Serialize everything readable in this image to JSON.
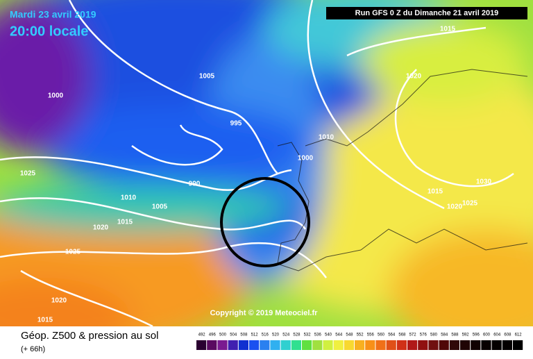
{
  "header": {
    "date": "Mardi 23 avril 2019",
    "time": "20:00 locale",
    "run": "Run GFS 0 Z du Dimanche 21 avril 2019"
  },
  "isobar_labels": [
    1015,
    1005,
    1000,
    1020,
    995,
    1010,
    1000,
    990,
    1025,
    1010,
    1005,
    1015,
    1020,
    1025,
    1030,
    1015,
    1020,
    1025,
    1020,
    1015
  ],
  "copyright": "Copyright © 2019 Meteociel.fr",
  "footer": {
    "title": "Géop. Z500 & pression au sol",
    "lead": "(+ 66h)"
  },
  "legend": {
    "labels": [
      492,
      496,
      500,
      504,
      508,
      512,
      516,
      520,
      524,
      528,
      532,
      536,
      540,
      544,
      548,
      552,
      556,
      560,
      564,
      568,
      572,
      576,
      580,
      584,
      588,
      592,
      596,
      600,
      604,
      608,
      612
    ]
  }
}
